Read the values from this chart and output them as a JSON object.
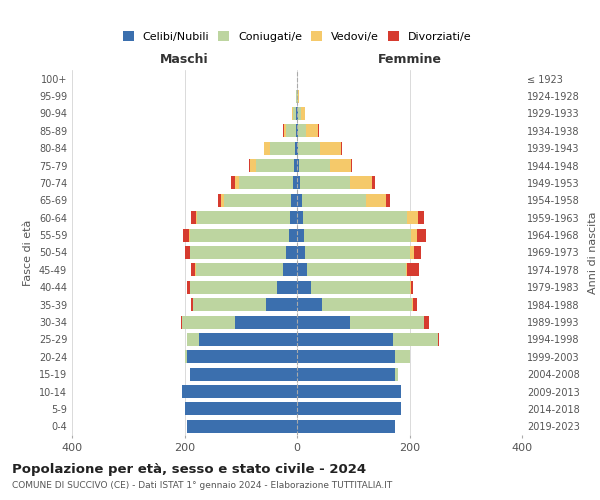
{
  "age_groups": [
    "0-4",
    "5-9",
    "10-14",
    "15-19",
    "20-24",
    "25-29",
    "30-34",
    "35-39",
    "40-44",
    "45-49",
    "50-54",
    "55-59",
    "60-64",
    "65-69",
    "70-74",
    "75-79",
    "80-84",
    "85-89",
    "90-94",
    "95-99",
    "100+"
  ],
  "birth_years": [
    "2019-2023",
    "2014-2018",
    "2009-2013",
    "2004-2008",
    "1999-2003",
    "1994-1998",
    "1989-1993",
    "1984-1988",
    "1979-1983",
    "1974-1978",
    "1969-1973",
    "1964-1968",
    "1959-1963",
    "1954-1958",
    "1949-1953",
    "1944-1948",
    "1939-1943",
    "1934-1938",
    "1929-1933",
    "1924-1928",
    "≤ 1923"
  ],
  "males": {
    "celibi": [
      195,
      200,
      205,
      190,
      195,
      175,
      110,
      55,
      35,
      25,
      20,
      15,
      12,
      10,
      8,
      5,
      3,
      1,
      2,
      0,
      0
    ],
    "coniugati": [
      0,
      0,
      0,
      0,
      5,
      20,
      95,
      130,
      155,
      155,
      170,
      175,
      165,
      120,
      95,
      68,
      45,
      18,
      5,
      1,
      0
    ],
    "vedovi": [
      0,
      0,
      0,
      0,
      0,
      0,
      0,
      0,
      0,
      1,
      1,
      2,
      3,
      5,
      8,
      10,
      10,
      5,
      2,
      0,
      0
    ],
    "divorziati": [
      0,
      0,
      0,
      0,
      0,
      0,
      2,
      3,
      5,
      8,
      8,
      10,
      8,
      5,
      6,
      2,
      1,
      1,
      0,
      0,
      0
    ]
  },
  "females": {
    "nubili": [
      175,
      185,
      185,
      175,
      175,
      170,
      95,
      45,
      25,
      18,
      15,
      12,
      10,
      8,
      5,
      3,
      2,
      1,
      2,
      0,
      0
    ],
    "coniugate": [
      0,
      0,
      0,
      5,
      25,
      80,
      130,
      160,
      175,
      175,
      185,
      190,
      185,
      115,
      90,
      55,
      38,
      15,
      5,
      2,
      0
    ],
    "vedove": [
      0,
      0,
      0,
      0,
      0,
      1,
      1,
      1,
      2,
      3,
      8,
      12,
      20,
      35,
      38,
      38,
      38,
      22,
      8,
      2,
      0
    ],
    "divorziate": [
      0,
      0,
      0,
      0,
      0,
      2,
      8,
      8,
      5,
      20,
      12,
      15,
      10,
      7,
      5,
      2,
      2,
      1,
      0,
      0,
      0
    ]
  },
  "colors": {
    "celibi_nubili": "#3B6FAE",
    "coniugati": "#BDD5A0",
    "vedovi": "#F5C96A",
    "divorziati": "#D63B2F"
  },
  "xlim": 400,
  "title": "Popolazione per età, sesso e stato civile - 2024",
  "subtitle": "COMUNE DI SUCCIVO (CE) - Dati ISTAT 1° gennaio 2024 - Elaborazione TUTTITALIA.IT",
  "ylabel_left": "Fasce di età",
  "ylabel_right": "Anni di nascita",
  "xlabel_left": "Maschi",
  "xlabel_right": "Femmine",
  "background_color": "#ffffff",
  "grid_color": "#cccccc"
}
